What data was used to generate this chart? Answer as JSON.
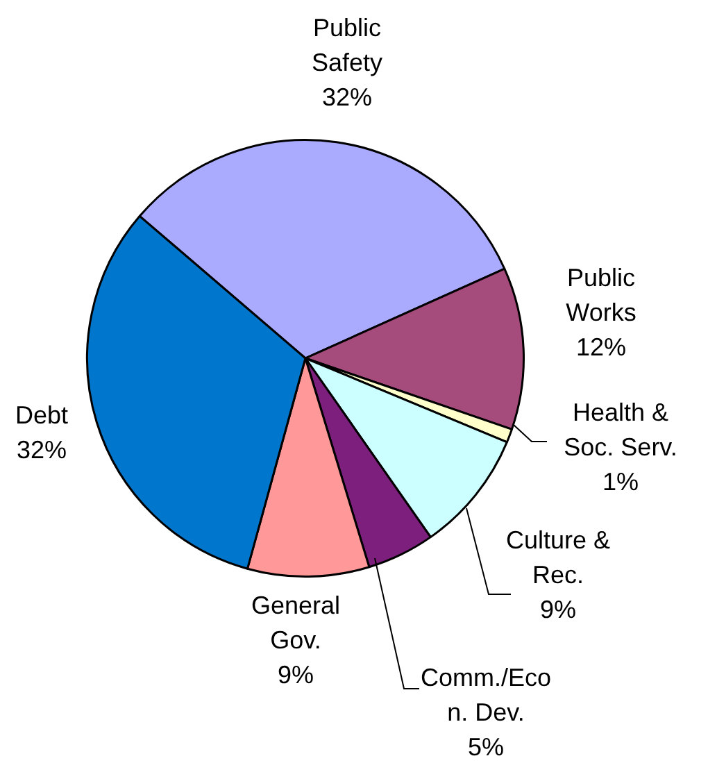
{
  "chart_data": {
    "type": "pie",
    "categories": [
      "Public Safety",
      "Public Works",
      "Health & Soc. Serv.",
      "Culture & Rec.",
      "Comm./Econ. Dev.",
      "General Gov.",
      "Debt"
    ],
    "values": [
      32,
      12,
      1,
      9,
      5,
      9,
      32
    ],
    "value_labels": [
      "32%",
      "12%",
      "1%",
      "9%",
      "5%",
      "9%",
      "32%"
    ],
    "colors": [
      "#aaaaff",
      "#a64c7c",
      "#ffffcc",
      "#ccffff",
      "#7d1f7d",
      "#ff9999",
      "#0077cc"
    ]
  }
}
